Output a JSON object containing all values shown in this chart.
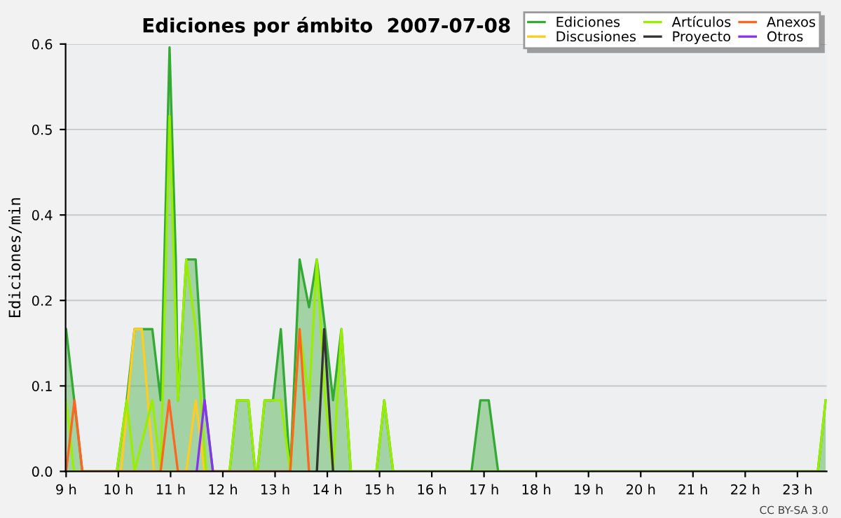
{
  "chart_data": {
    "type": "line",
    "title": "Ediciones por ámbito  2007-07-08",
    "ylabel": "Ediciones/min",
    "xlim": [
      8.99,
      23.56
    ],
    "ylim": [
      0,
      0.625
    ],
    "xticks": [
      {
        "value": 9,
        "label": "9 h"
      },
      {
        "value": 10,
        "label": "10 h"
      },
      {
        "value": 11,
        "label": "11 h"
      },
      {
        "value": 12,
        "label": "12 h"
      },
      {
        "value": 13,
        "label": "13 h"
      },
      {
        "value": 14,
        "label": "14 h"
      },
      {
        "value": 15,
        "label": "15 h"
      },
      {
        "value": 16,
        "label": "16 h"
      },
      {
        "value": 17,
        "label": "17 h"
      },
      {
        "value": 18,
        "label": "18 h"
      },
      {
        "value": 19,
        "label": "19 h"
      },
      {
        "value": 20,
        "label": "20 h"
      },
      {
        "value": 21,
        "label": "21 h"
      },
      {
        "value": 22,
        "label": "22 h"
      },
      {
        "value": 23,
        "label": "23 h"
      }
    ],
    "yticks": [
      {
        "value": 0,
        "label": "0.0"
      },
      {
        "value": 0.125,
        "label": "0.1"
      },
      {
        "value": 0.25,
        "label": "0.2"
      },
      {
        "value": 0.375,
        "label": "0.4"
      },
      {
        "value": 0.5,
        "label": "0.5"
      },
      {
        "value": 0.625,
        "label": "0.6"
      }
    ],
    "grid": "y",
    "legend": "top right",
    "annotations": [
      "CC BY-SA 3.0"
    ],
    "series": [
      {
        "name": "Ediciones",
        "type": "area",
        "color": "#33aa33",
        "x": [
          9.0,
          9.31,
          9.97,
          10.16,
          10.31,
          10.65,
          10.81,
          10.88,
          10.98,
          11.1,
          11.14,
          11.3,
          11.48,
          11.65,
          11.81,
          12.13,
          12.27,
          12.49,
          12.62,
          12.66,
          12.8,
          12.96,
          13.11,
          13.29,
          13.47,
          13.65,
          13.8,
          13.96,
          14.11,
          14.27,
          14.45,
          14.94,
          15.09,
          15.26,
          16.76,
          16.93,
          17.09,
          17.27,
          23.39,
          23.54
        ],
        "values": [
          0.208,
          0,
          0,
          0.104,
          0.208,
          0.208,
          0.104,
          0.31,
          0.62,
          0.31,
          0.104,
          0.31,
          0.31,
          0.104,
          0,
          0,
          0.104,
          0.104,
          0,
          0,
          0.104,
          0.104,
          0.208,
          0,
          0.31,
          0.24,
          0.31,
          0.208,
          0.104,
          0.208,
          0,
          0,
          0.104,
          0,
          0,
          0.104,
          0.104,
          0,
          0,
          0.104
        ]
      },
      {
        "name": "Discusiones",
        "color": "#ffcc22",
        "x": [
          10.05,
          10.31,
          10.45,
          10.68,
          11.3,
          11.48,
          11.65
        ],
        "values": [
          0,
          0.208,
          0.208,
          0,
          0,
          0.104,
          0
        ]
      },
      {
        "name": "Artículos",
        "color": "#99ee00",
        "x": [
          9.0,
          9.15,
          9.97,
          10.16,
          10.31,
          10.65,
          10.81,
          10.98,
          11.14,
          11.3,
          11.48,
          11.68,
          12.13,
          12.27,
          12.49,
          12.62,
          12.66,
          12.8,
          12.96,
          13.11,
          13.29,
          13.47,
          13.65,
          13.8,
          13.96,
          14.11,
          14.27,
          14.45,
          14.94,
          15.09,
          15.26,
          23.39,
          23.54
        ],
        "values": [
          0.104,
          0,
          0,
          0.104,
          0,
          0.104,
          0,
          0.52,
          0.104,
          0.31,
          0.208,
          0,
          0,
          0.104,
          0.104,
          0,
          0,
          0.104,
          0.104,
          0.104,
          0,
          0.208,
          0.104,
          0.31,
          0.104,
          0,
          0.208,
          0,
          0,
          0.104,
          0,
          0,
          0.104
        ]
      },
      {
        "name": "Proyecto",
        "color": "#333333",
        "x": [
          13.8,
          13.94,
          14.11
        ],
        "values": [
          0,
          0.208,
          0
        ]
      },
      {
        "name": "Anexos",
        "color": "#ff6622",
        "x": [
          9.0,
          9.16,
          9.31,
          10.81,
          10.97,
          11.14,
          13.29,
          13.47,
          13.65
        ],
        "values": [
          0,
          0.104,
          0,
          0,
          0.104,
          0,
          0,
          0.208,
          0
        ]
      },
      {
        "name": "Otros",
        "color": "#8833ee",
        "x": [
          11.5,
          11.65,
          11.81
        ],
        "values": [
          0,
          0.104,
          0
        ]
      }
    ]
  }
}
